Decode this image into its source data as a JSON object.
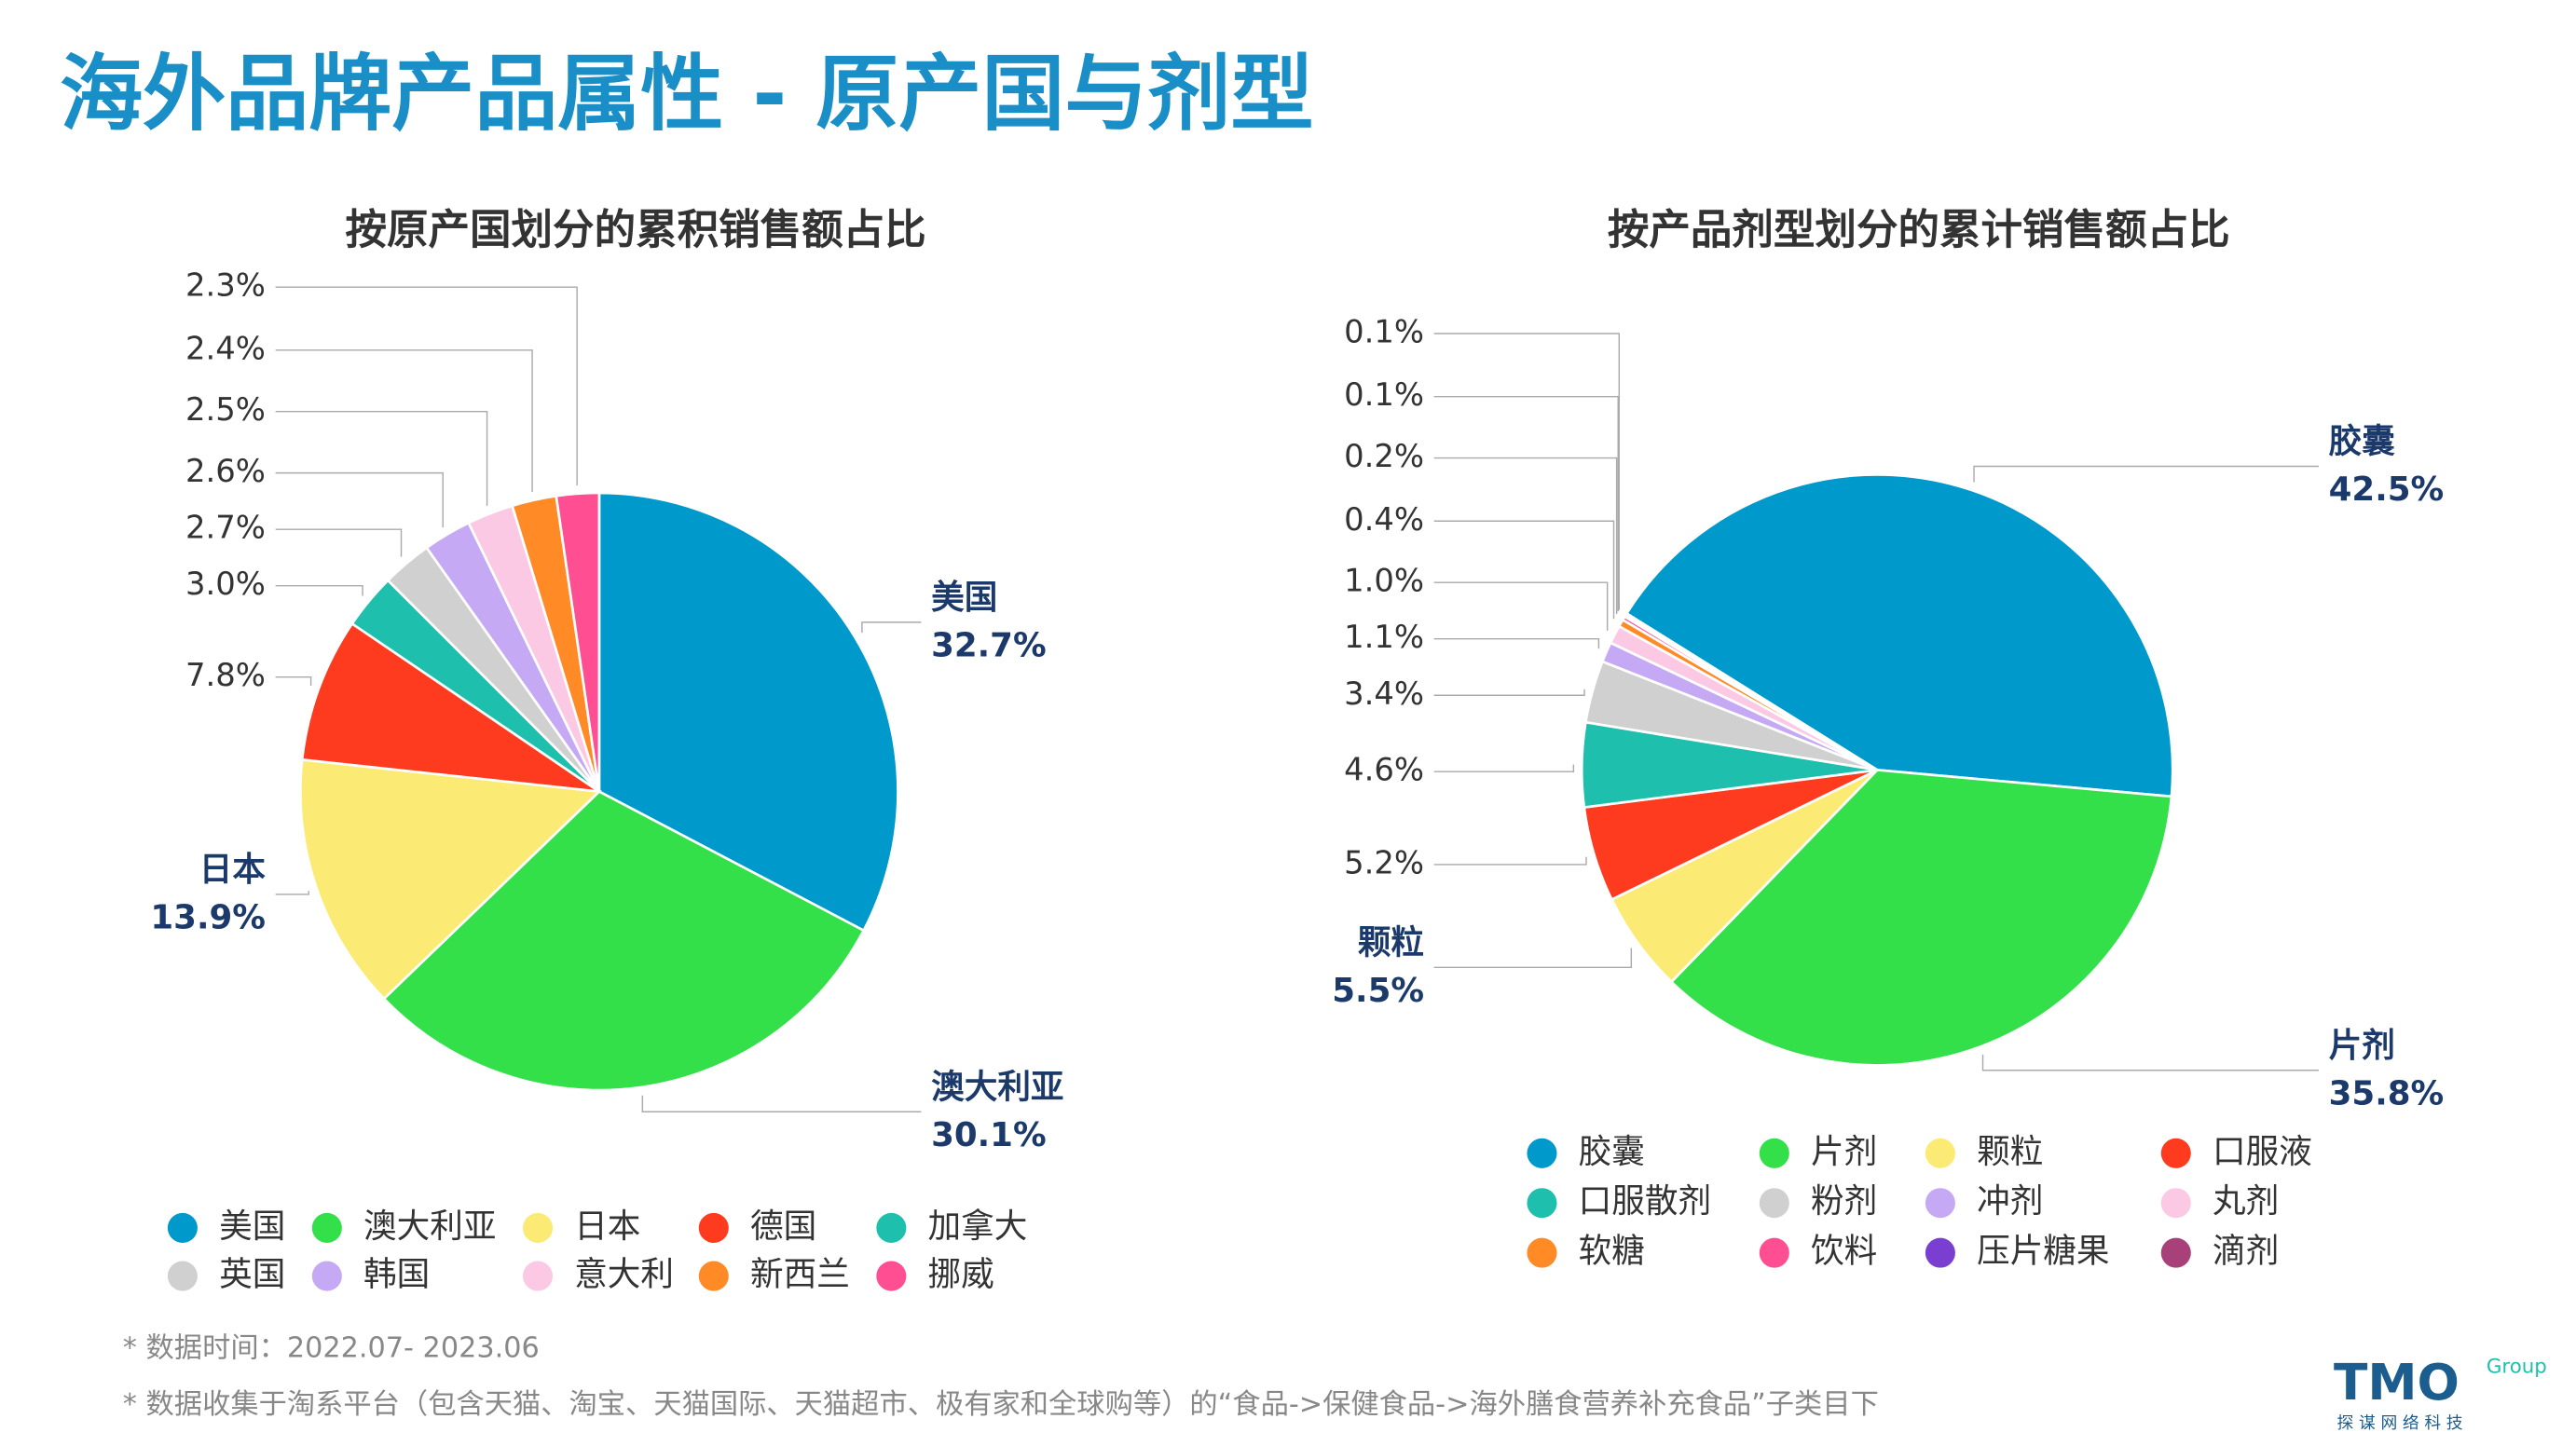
{
  "header": {
    "title": "海外品牌产品属性 - 原产国与剂型"
  },
  "chart_data": [
    {
      "type": "pie",
      "title": "按原产国划分的累积销售额占比",
      "categories": [
        "美国",
        "澳大利亚",
        "日本",
        "德国",
        "加拿大",
        "英国",
        "韩国",
        "意大利",
        "新西兰",
        "挪威"
      ],
      "values": [
        32.7,
        30.1,
        13.9,
        7.8,
        3.0,
        2.7,
        2.6,
        2.5,
        2.4,
        2.3
      ],
      "value_labels": [
        "32.7%",
        "30.1%",
        "13.9%",
        "7.8%",
        "3.0%",
        "2.7%",
        "2.6%",
        "2.5%",
        "2.4%",
        "2.3%"
      ],
      "colors": [
        "#0099cc",
        "#33e04a",
        "#fbeb74",
        "#ff3b1f",
        "#1fbfae",
        "#d0d0d0",
        "#c6a9f4",
        "#fcc9e4",
        "#ff8a26",
        "#ff4e91"
      ]
    },
    {
      "type": "pie",
      "title": "按产品剂型划分的累计销售额占比",
      "categories": [
        "胶囊",
        "片剂",
        "颗粒",
        "口服液",
        "口服散剂",
        "粉剂",
        "冲剂",
        "丸剂",
        "软糖",
        "饮料",
        "压片糖果",
        "滴剂"
      ],
      "values": [
        42.5,
        35.8,
        5.5,
        5.2,
        4.6,
        3.4,
        1.1,
        1.0,
        0.4,
        0.2,
        0.1,
        0.1
      ],
      "value_labels": [
        "42.5%",
        "35.8%",
        "5.5%",
        "5.2%",
        "4.6%",
        "3.4%",
        "1.1%",
        "1.0%",
        "0.4%",
        "0.2%",
        "0.1%",
        "0.1%"
      ],
      "colors": [
        "#0099cc",
        "#33e04a",
        "#fbeb74",
        "#ff3b1f",
        "#1fbfae",
        "#d0d0d0",
        "#c6a9f4",
        "#fcc9e4",
        "#ff8a26",
        "#ff4e91",
        "#7a3fd1",
        "#a8407a"
      ]
    }
  ],
  "footnotes": [
    "* 数据时间：2022.07- 2023.06",
    "* 数据收集于淘系平台（包含天猫、淘宝、天猫国际、天猫超市、极有家和全球购等）的“食品->保健食品->海外膳食营养补充食品”子类目下"
  ],
  "logo": {
    "mark": "TMO",
    "group": "Group",
    "tagline": "探 谋 网 络 科 技"
  }
}
